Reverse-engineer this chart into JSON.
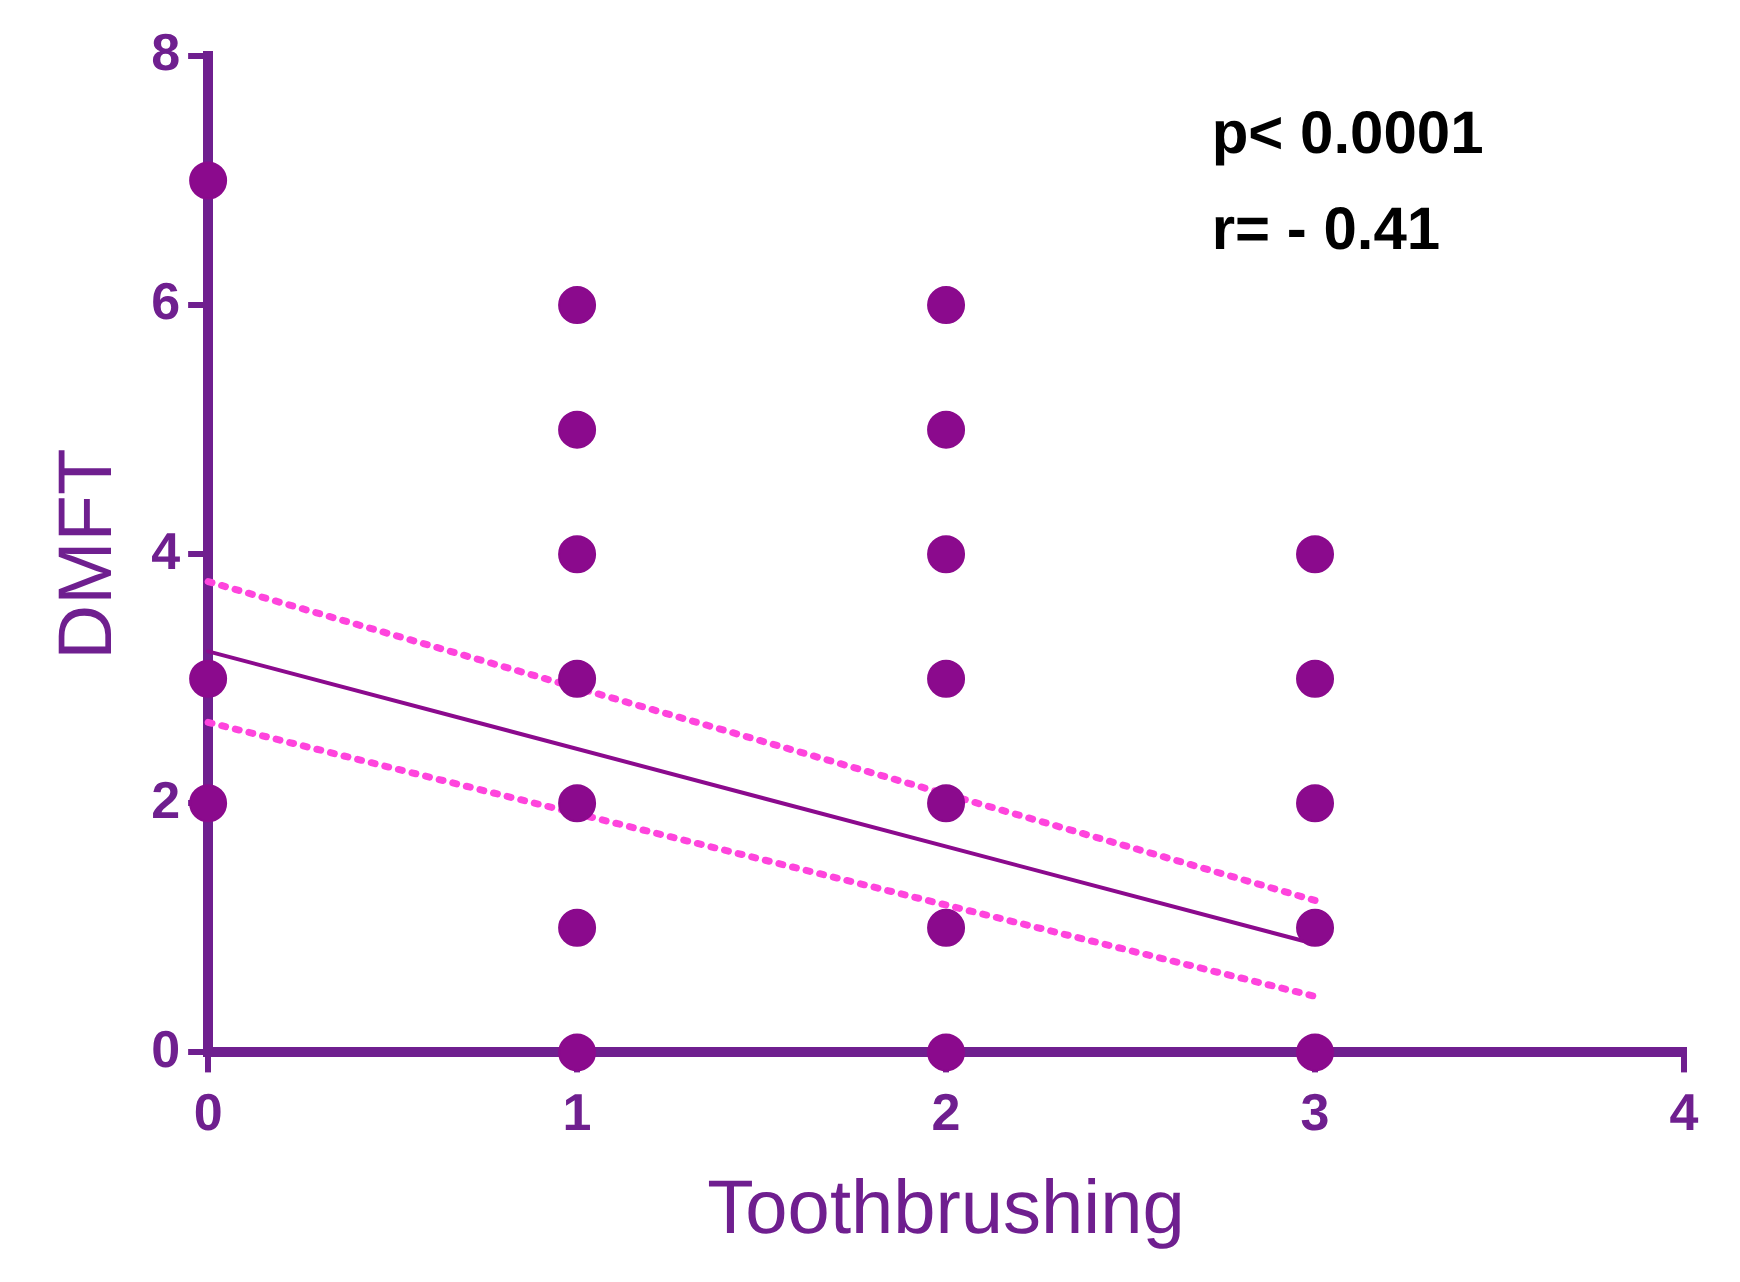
{
  "chart_data": {
    "type": "scatter",
    "xlabel": "Toothbrushing",
    "ylabel": "DMFT",
    "annotations": [
      "p< 0.0001",
      "r= - 0.41"
    ],
    "xlim": [
      0,
      4
    ],
    "xticks": [
      0,
      1,
      2,
      3,
      4
    ],
    "ylim": [
      0,
      8
    ],
    "yticks": [
      0,
      2,
      4,
      6,
      8
    ],
    "grid": false,
    "legend": false,
    "series": [
      {
        "type": "scatter",
        "color": "#8b0a8d",
        "marker": "circle",
        "x": [
          0,
          0,
          0,
          1,
          1,
          1,
          1,
          1,
          1,
          1,
          2,
          2,
          2,
          2,
          2,
          2,
          2,
          3,
          3,
          3,
          3,
          3
        ],
        "values": [
          7,
          3,
          2,
          6,
          5,
          4,
          3,
          2,
          1,
          0,
          6,
          5,
          4,
          3,
          2,
          1,
          0,
          4,
          3,
          2,
          1,
          0
        ]
      },
      {
        "type": "line",
        "color": "#8b0a8d",
        "marker": "none",
        "line_style": "solid",
        "x": [
          0,
          3
        ],
        "values": [
          3.22,
          0.87
        ]
      },
      {
        "type": "line",
        "color": "#ff44dd",
        "marker": "none",
        "line_style": "dotted",
        "x": [
          0,
          3
        ],
        "values": [
          3.78,
          1.22
        ]
      },
      {
        "type": "line",
        "color": "#ff44dd",
        "marker": "none",
        "line_style": "dotted",
        "x": [
          0,
          3
        ],
        "values": [
          2.65,
          0.45
        ]
      }
    ]
  }
}
